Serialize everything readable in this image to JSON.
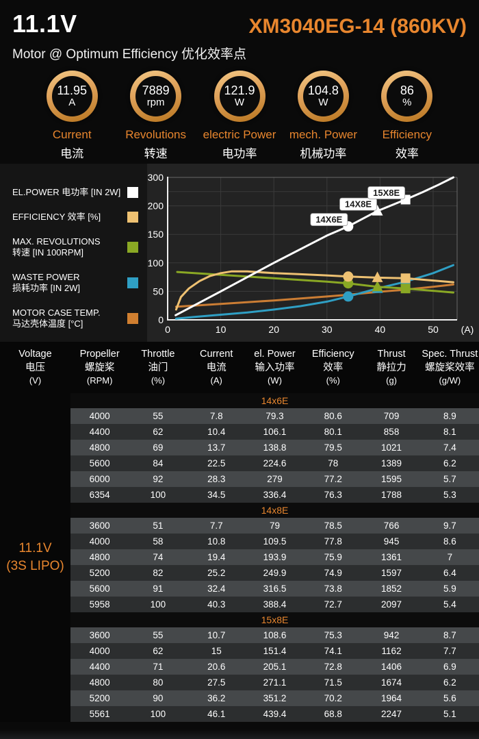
{
  "accent_color": "#e8862e",
  "header": {
    "voltage": "11.1V",
    "model": "XM3040EG-14 (860KV)",
    "subtitle": "Motor @ Optimum Efficiency  优化效率点"
  },
  "gauges": [
    {
      "value": "11.95",
      "unit": "A",
      "label_en": "Current",
      "label_zh": "电流"
    },
    {
      "value": "7889",
      "unit": "rpm",
      "label_en": "Revolutions",
      "label_zh": "转速"
    },
    {
      "value": "121.9",
      "unit": "W",
      "label_en": "electric Power",
      "label_zh": "电功率"
    },
    {
      "value": "104.8",
      "unit": "W",
      "label_en": "mech. Power",
      "label_zh": "机械功率"
    },
    {
      "value": "86",
      "unit": "%",
      "label_en": "Efficiency",
      "label_zh": "效率"
    }
  ],
  "legend": {
    "items": [
      {
        "lines": [
          "EL.POWER 电功率 [IN 2W]"
        ],
        "color": "#ffffff"
      },
      {
        "lines": [
          "EFFICIENCY 效率 [%]"
        ],
        "color": "#eec172"
      },
      {
        "lines": [
          "MAX. REVOLUTIONS",
          "转速 [IN 100RPM]"
        ],
        "color": "#8aa824"
      },
      {
        "lines": [
          "WASTE POWER",
          "损耗功率 [IN 2W]"
        ],
        "color": "#2f9fc4"
      },
      {
        "lines": [
          "MOTOR CASE TEMP.",
          "马达壳体温度 [°C]"
        ],
        "color": "#d07f30"
      }
    ]
  },
  "chart_data": {
    "type": "line",
    "title": "",
    "xlabel": "(A)",
    "ylabel": "",
    "x_ticks": [
      0,
      10,
      20,
      30,
      40,
      50
    ],
    "x_max": 54.5,
    "y_tick_labels": [
      "300",
      "200",
      "150",
      "100",
      "50",
      "0"
    ],
    "y_axis_note": "tick labels equally spaced: 0-200 linear over 4 intervals, 200-300 compressed into 1 interval",
    "grid": true,
    "legend_position": "left",
    "series": [
      {
        "name": "EL.POWER 电功率 [IN 2W]",
        "color": "#ffffff",
        "width": 3,
        "points": [
          [
            1.5,
            8
          ],
          [
            10,
            50
          ],
          [
            20,
            100
          ],
          [
            30,
            148
          ],
          [
            34,
            164
          ],
          [
            39.5,
            191
          ],
          [
            44.8,
            222
          ],
          [
            48,
            248
          ],
          [
            51,
            274
          ],
          [
            53.8,
            300
          ]
        ],
        "markers": [
          {
            "label": "14X6E",
            "shape": "circle",
            "x": 34,
            "y": 164
          },
          {
            "label": "14X8E",
            "shape": "triangle",
            "x": 39.5,
            "y": 191
          },
          {
            "label": "15X8E",
            "shape": "square",
            "x": 44.8,
            "y": 222
          }
        ]
      },
      {
        "name": "EFFICIENCY 效率 [%]",
        "color": "#eec172",
        "width": 3,
        "points": [
          [
            1.6,
            18
          ],
          [
            2.5,
            40
          ],
          [
            4,
            55
          ],
          [
            6,
            68
          ],
          [
            8,
            77
          ],
          [
            10,
            82
          ],
          [
            12,
            85
          ],
          [
            15,
            85
          ],
          [
            20,
            82
          ],
          [
            25,
            80
          ],
          [
            30,
            78
          ],
          [
            34,
            76
          ],
          [
            39.5,
            74
          ],
          [
            44.8,
            73
          ],
          [
            50,
            69
          ],
          [
            53.8,
            66
          ]
        ],
        "markers": [
          {
            "shape": "circle",
            "x": 34,
            "y": 76
          },
          {
            "shape": "triangle",
            "x": 39.5,
            "y": 74
          },
          {
            "shape": "square",
            "x": 44.8,
            "y": 73
          }
        ]
      },
      {
        "name": "MAX. REVOLUTIONS 转速 [IN 100RPM]",
        "color": "#8aa824",
        "width": 3,
        "points": [
          [
            1.8,
            84
          ],
          [
            10,
            79
          ],
          [
            20,
            73
          ],
          [
            30,
            67
          ],
          [
            34,
            64
          ],
          [
            39.5,
            58
          ],
          [
            44.8,
            55
          ],
          [
            50,
            51
          ],
          [
            53.8,
            48
          ]
        ],
        "markers": [
          {
            "shape": "circle",
            "x": 34,
            "y": 64
          },
          {
            "shape": "triangle",
            "x": 39.5,
            "y": 58
          },
          {
            "shape": "square",
            "x": 44.8,
            "y": 55
          }
        ]
      },
      {
        "name": "WASTE POWER 损耗功率 [IN 2W]",
        "color": "#2f9fc4",
        "width": 3,
        "points": [
          [
            1.6,
            2
          ],
          [
            5,
            5
          ],
          [
            10,
            9
          ],
          [
            15,
            13
          ],
          [
            20,
            18
          ],
          [
            25,
            24
          ],
          [
            30,
            32
          ],
          [
            34,
            41
          ],
          [
            39.5,
            55
          ],
          [
            44.8,
            67
          ],
          [
            50,
            82
          ],
          [
            53.8,
            96
          ]
        ],
        "markers": [
          {
            "shape": "circle",
            "x": 34,
            "y": 41
          },
          {
            "shape": "triangle",
            "x": 39.5,
            "y": 55
          },
          {
            "shape": "square",
            "x": 44.8,
            "y": 67
          }
        ]
      },
      {
        "name": "MOTOR CASE TEMP. 马达壳体温度 [°C]",
        "color": "#cb7d34",
        "width": 3,
        "points": [
          [
            1.6,
            23
          ],
          [
            10,
            28
          ],
          [
            20,
            34
          ],
          [
            30,
            41
          ],
          [
            34,
            44
          ],
          [
            39.5,
            49
          ],
          [
            44.8,
            53
          ],
          [
            50,
            58
          ],
          [
            53.8,
            62
          ]
        ],
        "markers": []
      }
    ]
  },
  "table": {
    "headers": [
      {
        "en": "Voltage",
        "zh": "电压",
        "unit": "(V)"
      },
      {
        "en": "Propeller",
        "zh": "螺旋桨",
        "unit": "(RPM)"
      },
      {
        "en": "Throttle",
        "zh": "油门",
        "unit": "(%)"
      },
      {
        "en": "Current",
        "zh": "电流",
        "unit": "(A)"
      },
      {
        "en": "el. Power",
        "zh": "输入功率",
        "unit": "(W)"
      },
      {
        "en": "Efficiency",
        "zh": "效率",
        "unit": "(%)"
      },
      {
        "en": "Thrust",
        "zh": "静拉力",
        "unit": "(g)"
      },
      {
        "en": "Spec. Thrust",
        "zh": "螺旋桨效率",
        "unit": "(g/W)"
      }
    ],
    "voltage_label": {
      "line1": "11.1V",
      "line2": "(3S LIPO)"
    },
    "sections": [
      {
        "name": "14x6E",
        "rows": [
          [
            "4000",
            "55",
            "7.8",
            "79.3",
            "80.6",
            "709",
            "8.9"
          ],
          [
            "4400",
            "62",
            "10.4",
            "106.1",
            "80.1",
            "858",
            "8.1"
          ],
          [
            "4800",
            "69",
            "13.7",
            "138.8",
            "79.5",
            "1021",
            "7.4"
          ],
          [
            "5600",
            "84",
            "22.5",
            "224.6",
            "78",
            "1389",
            "6.2"
          ],
          [
            "6000",
            "92",
            "28.3",
            "279",
            "77.2",
            "1595",
            "5.7"
          ],
          [
            "6354",
            "100",
            "34.5",
            "336.4",
            "76.3",
            "1788",
            "5.3"
          ]
        ]
      },
      {
        "name": "14x8E",
        "rows": [
          [
            "3600",
            "51",
            "7.7",
            "79",
            "78.5",
            "766",
            "9.7"
          ],
          [
            "4000",
            "58",
            "10.8",
            "109.5",
            "77.8",
            "945",
            "8.6"
          ],
          [
            "4800",
            "74",
            "19.4",
            "193.9",
            "75.9",
            "1361",
            "7"
          ],
          [
            "5200",
            "82",
            "25.2",
            "249.9",
            "74.9",
            "1597",
            "6.4"
          ],
          [
            "5600",
            "91",
            "32.4",
            "316.5",
            "73.8",
            "1852",
            "5.9"
          ],
          [
            "5958",
            "100",
            "40.3",
            "388.4",
            "72.7",
            "2097",
            "5.4"
          ]
        ]
      },
      {
        "name": "15x8E",
        "rows": [
          [
            "3600",
            "55",
            "10.7",
            "108.6",
            "75.3",
            "942",
            "8.7"
          ],
          [
            "4000",
            "62",
            "15",
            "151.4",
            "74.1",
            "1162",
            "7.7"
          ],
          [
            "4400",
            "71",
            "20.6",
            "205.1",
            "72.8",
            "1406",
            "6.9"
          ],
          [
            "4800",
            "80",
            "27.5",
            "271.1",
            "71.5",
            "1674",
            "6.2"
          ],
          [
            "5200",
            "90",
            "36.2",
            "351.2",
            "70.2",
            "1964",
            "5.6"
          ],
          [
            "5561",
            "100",
            "46.1",
            "439.4",
            "68.8",
            "2247",
            "5.1"
          ]
        ]
      }
    ]
  }
}
